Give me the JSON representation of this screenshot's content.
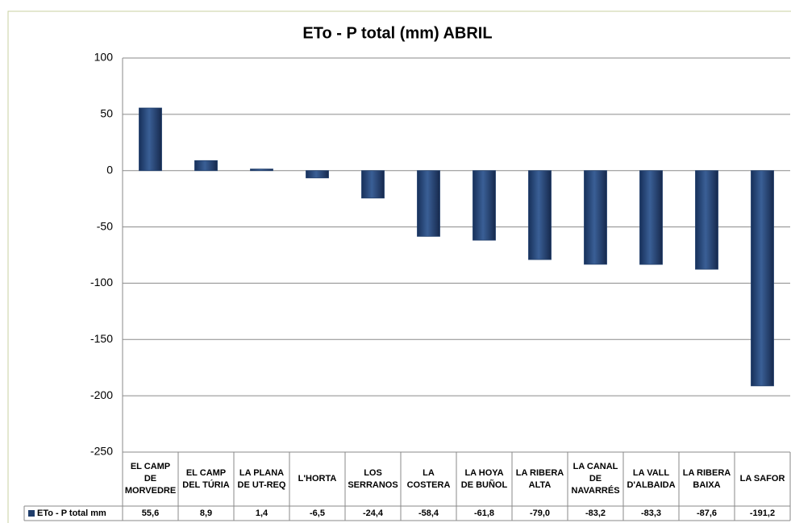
{
  "chart_data": {
    "type": "bar",
    "title": "ETo - P total (mm) ABRIL",
    "categories": [
      "EL CAMP DE MORVEDRE",
      "EL CAMP DEL TÚRIA",
      "LA PLANA DE UT-REQ",
      "L'HORTA",
      "LOS SERRANOS",
      "LA COSTERA",
      "LA HOYA DE BUÑOL",
      "LA RIBERA ALTA",
      "LA CANAL DE NAVARRÉS",
      "LA VALL D'ALBAIDA",
      "LA RIBERA BAIXA",
      "LA SAFOR"
    ],
    "series": [
      {
        "name": "ETo -   P total mm",
        "color": "#1f3d6b",
        "values": [
          55.6,
          8.9,
          1.4,
          -6.5,
          -24.4,
          -58.4,
          -61.8,
          -79.0,
          -83.2,
          -83.3,
          -87.6,
          -191.2
        ],
        "value_labels": [
          "55,6",
          "8,9",
          "1,4",
          "-6,5",
          "-24,4",
          "-58,4",
          "-61,8",
          "-79,0",
          "-83,2",
          "-83,3",
          "-87,6",
          "-191,2"
        ]
      }
    ],
    "ylim": [
      -250,
      100
    ],
    "yticks": [
      100,
      50,
      0,
      -50,
      -100,
      -150,
      -200,
      -250
    ],
    "grid": true,
    "data_table": true
  }
}
